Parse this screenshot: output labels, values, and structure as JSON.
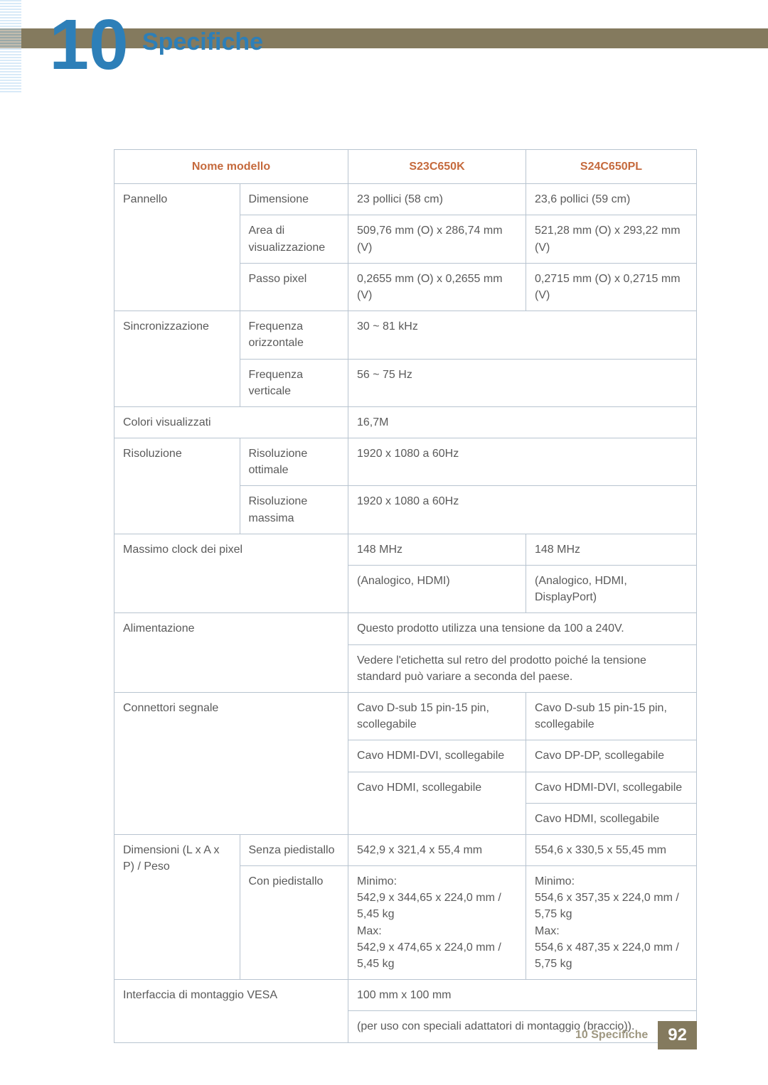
{
  "chapter": {
    "number": "10",
    "title": "Specifiche"
  },
  "header": {
    "name_model": "Nome modello",
    "model1": "S23C650K",
    "model2": "S24C650PL"
  },
  "rows": {
    "pannello": "Pannello",
    "dimensione": "Dimensione",
    "dim1": "23 pollici (58 cm)",
    "dim2": "23,6 pollici (59 cm)",
    "area": "Area di visualizzazione",
    "area1": "509,76 mm (O) x 286,74 mm (V)",
    "area2": "521,28 mm (O) x 293,22 mm (V)",
    "passo": "Passo pixel",
    "passo1": "0,2655 mm (O) x 0,2655 mm (V)",
    "passo2": "0,2715 mm (O) x 0,2715 mm (V)",
    "sync": "Sincronizzazione",
    "freq_h": "Frequenza orizzontale",
    "freq_h_val": "30 ~ 81 kHz",
    "freq_v": "Frequenza verticale",
    "freq_v_val": "56 ~ 75 Hz",
    "colori": "Colori visualizzati",
    "colori_val": "16,7M",
    "risoluzione": "Risoluzione",
    "ris_opt": "Risoluzione ottimale",
    "ris_opt_val": "1920 x 1080 a 60Hz",
    "ris_max": "Risoluzione massima",
    "ris_max_val": "1920 x 1080 a 60Hz",
    "clock": "Massimo clock dei pixel",
    "clock1": "148 MHz",
    "clock2": "148 MHz",
    "clock1b": "(Analogico, HDMI)",
    "clock2b": "(Analogico, HDMI, DisplayPort)",
    "alim": "Alimentazione",
    "alim1": "Questo prodotto utilizza una tensione da 100 a 240V.",
    "alim2": "Vedere l'etichetta sul retro del prodotto poiché la tensione standard può variare a seconda del paese.",
    "conn": "Connettori segnale",
    "conn1a": "Cavo D-sub 15 pin-15 pin, scollegabile",
    "conn2a": "Cavo D-sub 15 pin-15 pin, scollegabile",
    "conn1b": "Cavo HDMI-DVI, scollegabile",
    "conn2b": "Cavo DP-DP, scollegabile",
    "conn1c": "Cavo HDMI, scollegabile",
    "conn2c": "Cavo HDMI-DVI, scollegabile",
    "conn2d": "Cavo HDMI, scollegabile",
    "dim_label": "Dimensioni (L x A x P) / Peso",
    "senza": "Senza piedistallo",
    "senza1": "542,9 x 321,4 x 55,4 mm",
    "senza2": "554,6 x 330,5 x 55,45 mm",
    "con": "Con piedistallo",
    "con1": "Minimo:\n542,9 x 344,65 x 224,0 mm / 5,45 kg\nMax:\n542,9 x 474,65 x 224,0 mm / 5,45 kg",
    "con2": "Minimo:\n554,6 x 357,35 x 224,0 mm / 5,75 kg\nMax:\n554,6 x 487,35 x 224,0 mm / 5,75 kg",
    "vesa": "Interfaccia di montaggio VESA",
    "vesa1": "100 mm x 100 mm",
    "vesa2": "(per uso con speciali adattatori di montaggio (braccio))."
  },
  "footer": {
    "text": "10 Specifiche",
    "page": "92"
  }
}
